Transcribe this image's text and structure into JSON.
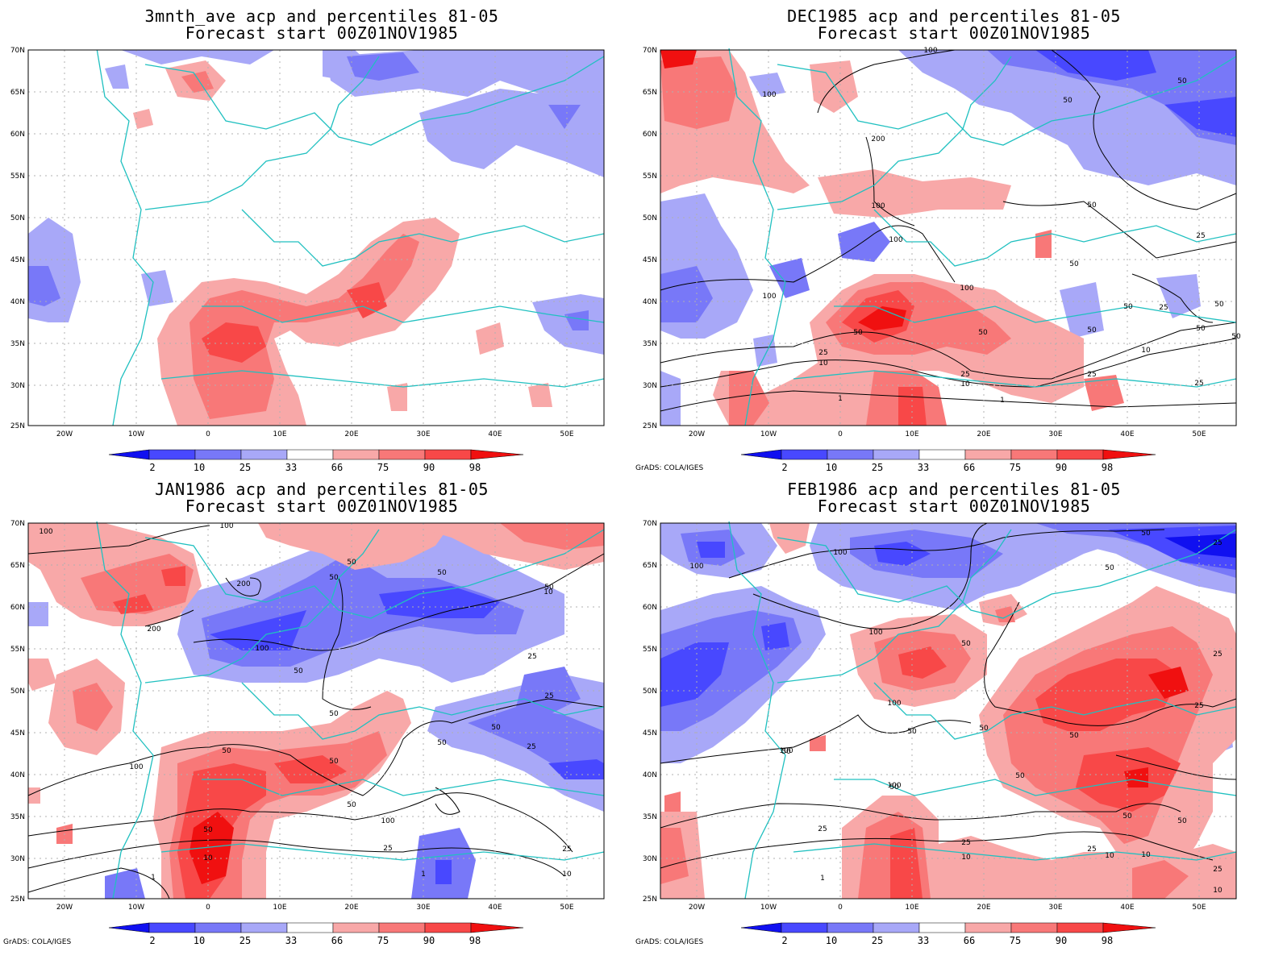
{
  "panels": [
    {
      "title": "3mnth_ave acp and percentiles 81-05",
      "subtitle": "Forecast start 00Z01NOV1985",
      "credit": ""
    },
    {
      "title": "DEC1985 acp and percentiles 81-05",
      "subtitle": "Forecast start 00Z01NOV1985",
      "credit": "GrADS: COLA/IGES"
    },
    {
      "title": "JAN1986 acp and percentiles 81-05",
      "subtitle": "Forecast start 00Z01NOV1985",
      "credit": "GrADS: COLA/IGES"
    },
    {
      "title": "FEB1986 acp and percentiles 81-05",
      "subtitle": "Forecast start 00Z01NOV1985",
      "credit": "GrADS: COLA/IGES"
    }
  ],
  "axes": {
    "lat_labels": [
      "70N",
      "65N",
      "60N",
      "55N",
      "50N",
      "45N",
      "40N",
      "35N",
      "30N",
      "25N"
    ],
    "lon_labels": [
      "20W",
      "10W",
      "0",
      "10E",
      "20E",
      "30E",
      "40E",
      "50E"
    ],
    "lat_range": [
      25,
      70
    ],
    "lon_range": [
      -25,
      55
    ]
  },
  "colorbar": {
    "labels": [
      "2",
      "10",
      "25",
      "33",
      "66",
      "75",
      "90",
      "98"
    ],
    "colors": [
      "#1010f0",
      "#4848ff",
      "#7878f8",
      "#a8a8f8",
      "#ffffff",
      "#f8a8a8",
      "#f87878",
      "#f84848",
      "#f01010"
    ]
  },
  "colors": {
    "coast": "#20c0c0",
    "contour": "#000000",
    "grid": "#b0b0b0"
  },
  "contour_labels": {
    "p1": [
      "100",
      "100",
      "200",
      "100",
      "50",
      "50",
      "50",
      "50",
      "25",
      "50",
      "100",
      "100",
      "100",
      "50",
      "50",
      "50",
      "25",
      "50",
      "50",
      "25",
      "10",
      "10",
      "25",
      "25",
      "10",
      "1",
      "1",
      "25",
      "50"
    ],
    "p2": [
      "100",
      "100",
      "200",
      "200",
      "100",
      "50",
      "50",
      "50",
      "50",
      "50",
      "50",
      "25",
      "25",
      "50",
      "50",
      "100",
      "50",
      "50",
      "50",
      "50",
      "100",
      "25",
      "10",
      "25",
      "10",
      "1",
      "1",
      "10",
      "25"
    ],
    "p3": [
      "100",
      "100",
      "50",
      "50",
      "25",
      "100",
      "100",
      "50",
      "100",
      "50",
      "50",
      "50",
      "25",
      "50",
      "50",
      "25",
      "100",
      "50",
      "50",
      "50",
      "25",
      "25",
      "10",
      "10",
      "10",
      "25",
      "1",
      "10",
      "25"
    ]
  }
}
